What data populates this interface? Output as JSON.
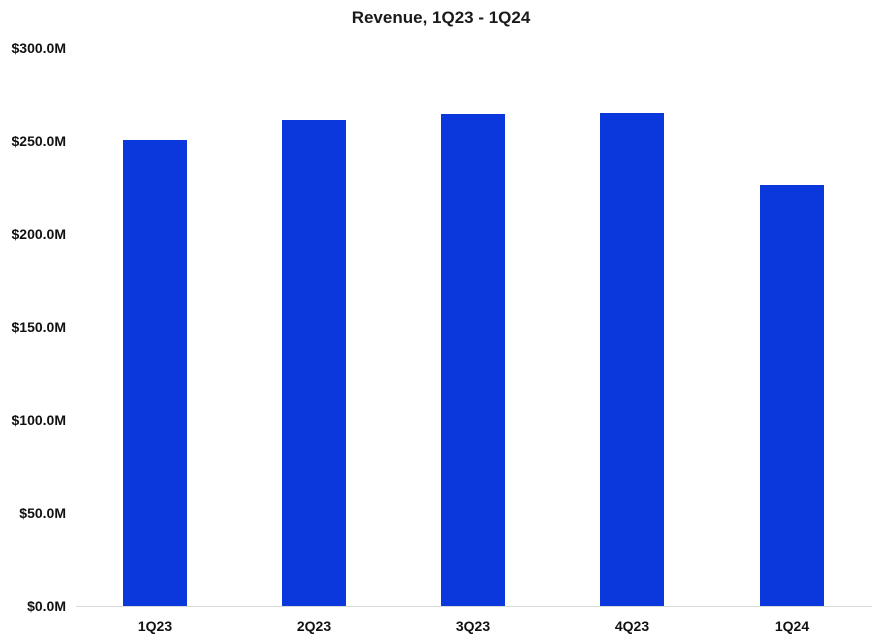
{
  "chart_data": {
    "type": "bar",
    "title": "Revenue, 1Q23 - 1Q24",
    "xlabel": "",
    "ylabel": "",
    "categories": [
      "1Q23",
      "2Q23",
      "3Q23",
      "4Q23",
      "1Q24"
    ],
    "values": [
      250.5,
      261.3,
      264.5,
      265.1,
      226.3
    ],
    "units": "$M",
    "ylim": [
      0,
      300
    ],
    "yticks": [
      "$0.0M",
      "$50.0M",
      "$100.0M",
      "$150.0M",
      "$200.0M",
      "$250.0M",
      "$300.0M"
    ],
    "ytick_values": [
      0,
      50,
      100,
      150,
      200,
      250,
      300
    ],
    "grid": false,
    "legend": null,
    "bar_color": "#0A38DC"
  }
}
